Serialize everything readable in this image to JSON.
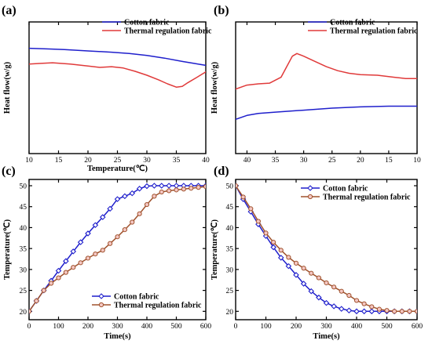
{
  "chart_data": [
    {
      "panel": "(a)",
      "type": "line",
      "xlabel": "Temperature(℃)",
      "ylabel": "Heat flow(w/g)",
      "xlim": [
        10,
        40
      ],
      "ylim": [
        0,
        1
      ],
      "x_ticks": [
        "10",
        "15",
        "20",
        "25",
        "30",
        "35",
        "40"
      ],
      "y_ticks": [],
      "legend": "top-center",
      "grid": false,
      "series": [
        {
          "name": "Cotton fabric",
          "color": "#1f1fcc",
          "marker": "none",
          "x": [
            10,
            13,
            16,
            20,
            24,
            27,
            30,
            33,
            36,
            38,
            40
          ],
          "y": [
            0.8,
            0.795,
            0.79,
            0.78,
            0.77,
            0.76,
            0.745,
            0.725,
            0.7,
            0.685,
            0.67
          ]
        },
        {
          "name": "Thermal regulation fabric",
          "color": "#e03a3a",
          "marker": "none",
          "x": [
            10,
            12,
            14,
            17,
            20,
            22,
            24,
            26,
            28,
            30,
            32,
            33.5,
            35,
            36,
            37,
            38.5,
            40
          ],
          "y": [
            0.68,
            0.685,
            0.69,
            0.68,
            0.665,
            0.655,
            0.66,
            0.65,
            0.625,
            0.595,
            0.56,
            0.53,
            0.505,
            0.51,
            0.54,
            0.58,
            0.62
          ]
        }
      ]
    },
    {
      "panel": "(b)",
      "type": "line",
      "xlabel": "",
      "ylabel": "Heat flow(w/g)",
      "xlim": [
        42,
        10
      ],
      "ylim": [
        0,
        1
      ],
      "x_ticks": [
        "40",
        "35",
        "30",
        "25",
        "20",
        "15",
        "10"
      ],
      "y_ticks": [],
      "legend": "top-center",
      "grid": false,
      "series": [
        {
          "name": "Cotton fabric",
          "color": "#1f1fcc",
          "marker": "none",
          "x": [
            42,
            40,
            38,
            35,
            30,
            25,
            20,
            15,
            10
          ],
          "y": [
            0.26,
            0.29,
            0.305,
            0.315,
            0.33,
            0.345,
            0.355,
            0.36,
            0.36
          ]
        },
        {
          "name": "Thermal regulation fabric",
          "color": "#e03a3a",
          "marker": "none",
          "x": [
            42,
            40,
            38,
            36,
            34,
            33,
            32,
            31.2,
            30,
            28,
            26,
            24,
            22,
            20,
            17,
            14,
            12,
            10
          ],
          "y": [
            0.49,
            0.52,
            0.53,
            0.535,
            0.58,
            0.66,
            0.74,
            0.76,
            0.74,
            0.7,
            0.66,
            0.63,
            0.61,
            0.6,
            0.595,
            0.58,
            0.57,
            0.57
          ]
        }
      ]
    },
    {
      "panel": "(c)",
      "type": "line",
      "xlabel": "Time(s)",
      "ylabel": "Temperature(℃)",
      "xlim": [
        0,
        600
      ],
      "ylim": [
        18,
        51.5
      ],
      "x_ticks": [
        "0",
        "100",
        "200",
        "300",
        "400",
        "500",
        "600"
      ],
      "y_ticks": [
        "20",
        "25",
        "30",
        "35",
        "40",
        "45",
        "50"
      ],
      "legend": "bottom-right",
      "grid": false,
      "series": [
        {
          "name": "Cotton fabric",
          "color": "#1f1fcc",
          "marker": "diamond",
          "x": [
            0,
            25,
            50,
            75,
            100,
            125,
            150,
            175,
            200,
            225,
            250,
            275,
            300,
            325,
            350,
            375,
            400,
            425,
            450,
            475,
            500,
            525,
            550,
            575,
            600
          ],
          "y": [
            20,
            22.5,
            25,
            27.3,
            29.7,
            32,
            34.3,
            36.5,
            38.6,
            40.6,
            42.5,
            44.5,
            46.8,
            47.5,
            48.2,
            49.3,
            49.9,
            50,
            50,
            50,
            50,
            50,
            50,
            50,
            50
          ]
        },
        {
          "name": "Thermal regulation fabric",
          "color": "#a0522d",
          "marker": "circle",
          "x": [
            0,
            25,
            50,
            75,
            100,
            125,
            150,
            175,
            200,
            225,
            250,
            275,
            300,
            325,
            350,
            375,
            400,
            425,
            450,
            475,
            500,
            525,
            550,
            575,
            600
          ],
          "y": [
            20,
            22.5,
            25,
            26.7,
            28,
            29.3,
            30.5,
            31.6,
            32.7,
            33.7,
            34.6,
            36.2,
            37.8,
            39.5,
            41.3,
            43.3,
            45.5,
            47.5,
            48.5,
            48.8,
            49,
            49.2,
            49.4,
            49.6,
            49.8
          ]
        }
      ]
    },
    {
      "panel": "(d)",
      "type": "line",
      "xlabel": "Time(s)",
      "ylabel": "Temperature(℃)",
      "xlim": [
        0,
        600
      ],
      "ylim": [
        18,
        51.5
      ],
      "x_ticks": [
        "0",
        "100",
        "200",
        "300",
        "400",
        "500",
        "600"
      ],
      "y_ticks": [
        "20",
        "25",
        "30",
        "35",
        "40",
        "45",
        "50"
      ],
      "legend": "top-right",
      "grid": false,
      "series": [
        {
          "name": "Cotton fabric",
          "color": "#1f1fcc",
          "marker": "diamond",
          "x": [
            0,
            25,
            50,
            75,
            100,
            125,
            150,
            175,
            200,
            225,
            250,
            275,
            300,
            325,
            350,
            375,
            400,
            425,
            450,
            475,
            500,
            525,
            550,
            575,
            600
          ],
          "y": [
            50,
            46.8,
            43.8,
            40.8,
            38,
            35.3,
            32.8,
            30.8,
            28.7,
            26.6,
            24.8,
            23.3,
            22,
            21.2,
            20.6,
            20.2,
            20,
            20,
            20,
            20,
            20,
            20,
            20,
            20,
            20
          ]
        },
        {
          "name": "Thermal regulation fabric",
          "color": "#a0522d",
          "marker": "circle",
          "x": [
            0,
            25,
            50,
            75,
            100,
            125,
            150,
            175,
            200,
            225,
            250,
            275,
            300,
            325,
            350,
            375,
            400,
            425,
            450,
            475,
            500,
            525,
            550,
            575,
            600
          ],
          "y": [
            50,
            47.3,
            44.5,
            41.5,
            38.7,
            36.5,
            34.6,
            32.9,
            31.5,
            30.3,
            29.1,
            28,
            26.8,
            25.8,
            24.8,
            23.8,
            22.6,
            21.8,
            21.1,
            20.5,
            20.2,
            20,
            20,
            20,
            20
          ]
        }
      ]
    }
  ]
}
